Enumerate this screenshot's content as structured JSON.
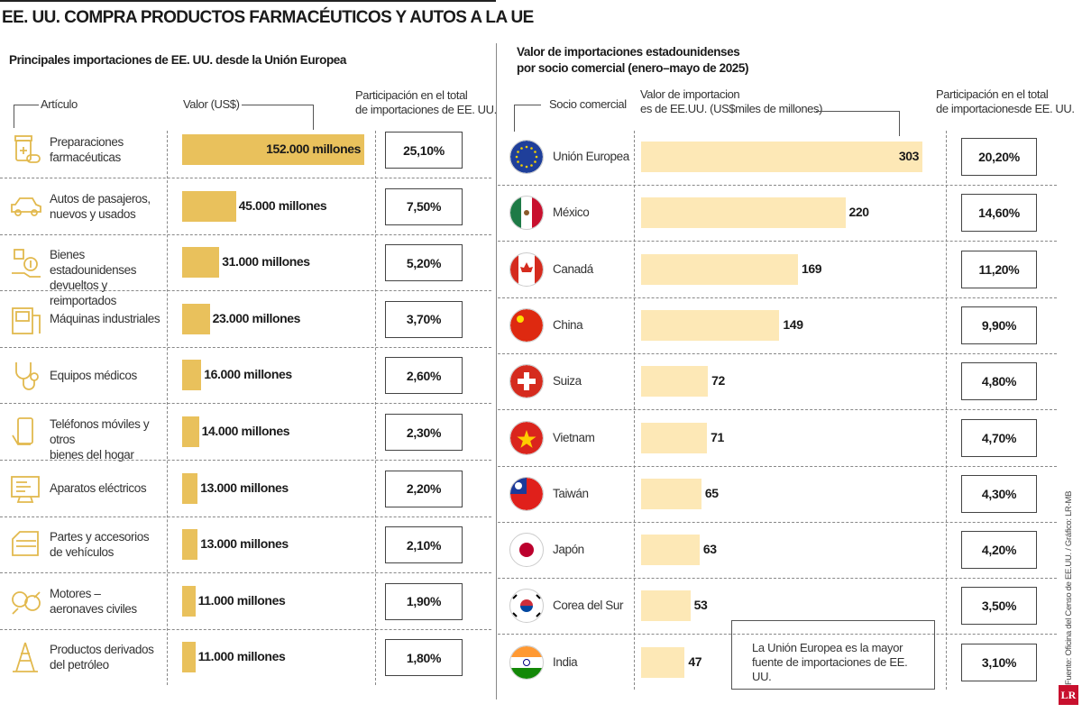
{
  "title": "EE. UU. COMPRA PRODUCTOS FARMACÉUTICOS Y AUTOS A LA UE",
  "colors": {
    "left_bar": "#e9c15c",
    "right_bar": "#fde8b6",
    "logo": "#c8102e"
  },
  "chart_data": [
    {
      "type": "bar",
      "orientation": "horizontal",
      "title": "Principales importaciones de EE. UU. desde la Unión Europea",
      "category_header": "Artículo",
      "value_header": "Valor (US$)",
      "share_header": [
        "Participación en el total",
        "de importaciones de EE. UU."
      ],
      "categories": [
        "Preparaciones farmacéuticas",
        "Autos de pasajeros, nuevos y usados",
        "Bienes estadounidenses devueltos y reimportados",
        "Máquinas industriales",
        "Equipos médicos",
        "Teléfonos móviles y otros bienes del hogar",
        "Aparatos eléctricos",
        "Partes y accesorios de vehículos",
        "Motores – aeronaves civiles",
        "Productos derivados del petróleo"
      ],
      "label_lines": [
        [
          "Preparaciones",
          "farmacéuticas"
        ],
        [
          "Autos de pasajeros,",
          "nuevos y usados"
        ],
        [
          "Bienes estadounidenses",
          "devueltos y reimportados"
        ],
        [
          "Máquinas industriales"
        ],
        [
          "Equipos médicos"
        ],
        [
          "Teléfonos móviles y otros",
          "bienes del hogar"
        ],
        [
          "Aparatos eléctricos"
        ],
        [
          "Partes y accesorios",
          "de vehículos"
        ],
        [
          "Motores –",
          "aeronaves civiles"
        ],
        [
          "Productos derivados",
          "del petróleo"
        ]
      ],
      "icons": [
        "pill-bottle-icon",
        "car-icon",
        "returned-goods-icon",
        "industrial-machine-icon",
        "stethoscope-icon",
        "mobile-phone-icon",
        "electrical-appliance-icon",
        "car-parts-icon",
        "engine-icon",
        "oil-derrick-icon"
      ],
      "values": [
        152000,
        45000,
        31000,
        23000,
        16000,
        14000,
        13000,
        13000,
        11000,
        11000
      ],
      "value_labels": [
        "152.000 millones",
        "45.000 millones",
        "31.000 millones",
        "23.000 millones",
        "16.000 millones",
        "14.000 millones",
        "13.000 millones",
        "13.000 millones",
        "11.000 millones",
        "11.000 millones"
      ],
      "shares": [
        "25,10%",
        "7,50%",
        "5,20%",
        "3,70%",
        "2,60%",
        "2,30%",
        "2,20%",
        "2,10%",
        "1,90%",
        "1,80%"
      ]
    },
    {
      "type": "bar",
      "orientation": "horizontal",
      "title": [
        "Valor de importaciones estadounidenses",
        "por socio comercial (enero–mayo de 2025)"
      ],
      "category_header": "Socio comercial",
      "value_header": [
        "Valor de importacion",
        "es de EE.UU. (US$miles de millones)"
      ],
      "share_header": [
        "Participación en el total",
        "de importacionesde EE. UU."
      ],
      "categories": [
        "Unión Europea",
        "México",
        "Canadá",
        "China",
        "Suiza",
        "Vietnam",
        "Taiwán",
        "Japón",
        "Corea del Sur",
        "India"
      ],
      "icons": [
        "eu-flag-icon",
        "mexico-flag-icon",
        "canada-flag-icon",
        "china-flag-icon",
        "switzerland-flag-icon",
        "vietnam-flag-icon",
        "taiwan-flag-icon",
        "japan-flag-icon",
        "south-korea-flag-icon",
        "india-flag-icon"
      ],
      "values": [
        303,
        220,
        169,
        149,
        72,
        71,
        65,
        63,
        53,
        47
      ],
      "shares": [
        "20,20%",
        "14,60%",
        "11,20%",
        "9,90%",
        "4,80%",
        "4,70%",
        "4,30%",
        "4,20%",
        "3,50%",
        "3,10%"
      ]
    }
  ],
  "note": "La Unión Europea es la mayor fuente de importaciones de EE. UU.",
  "credit": "Fuente: Oficina del Censo de EE.UU. / Gráfico: LR-MB",
  "logo": "LR"
}
